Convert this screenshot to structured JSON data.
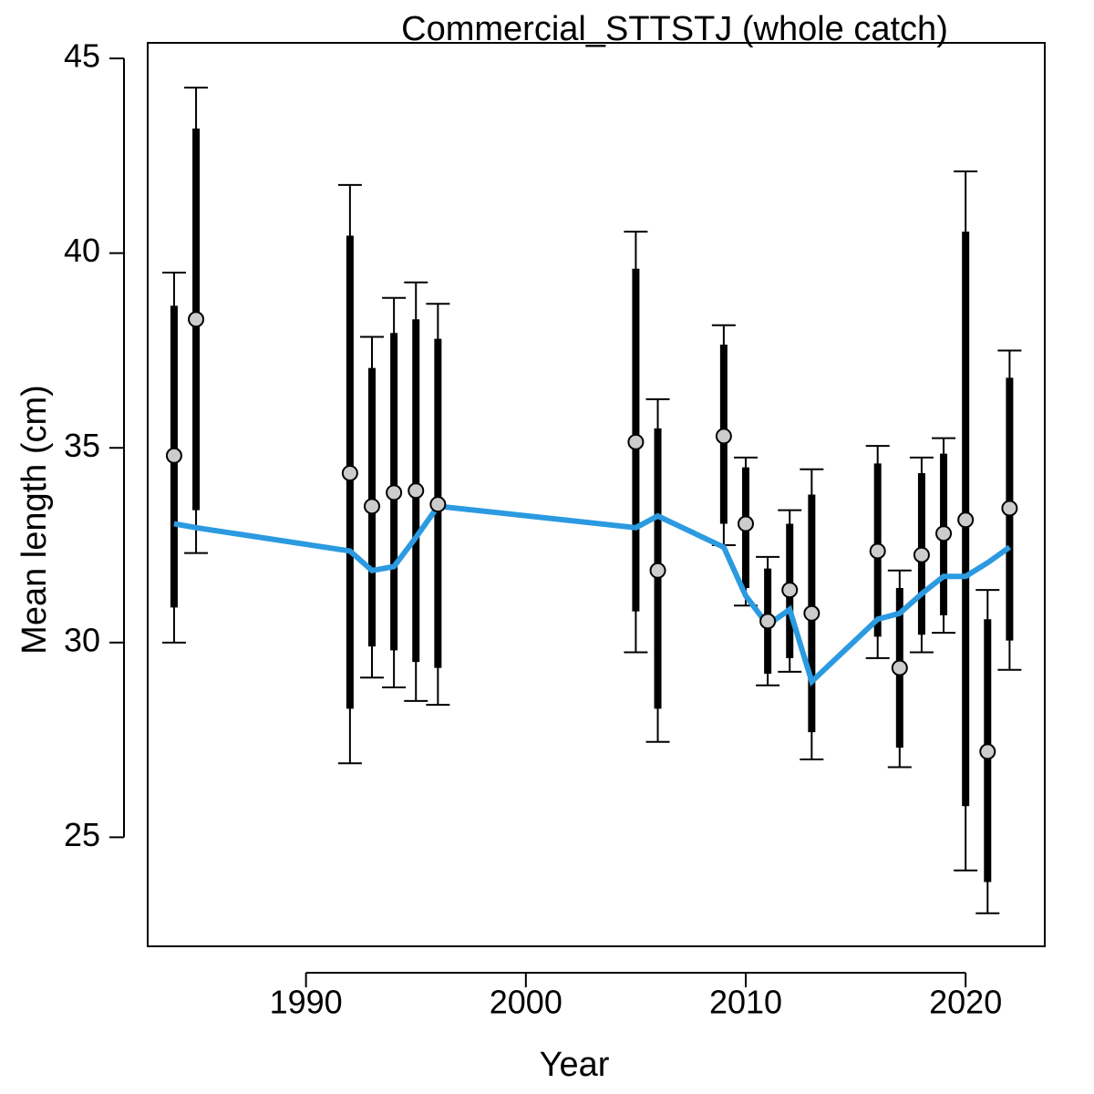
{
  "chart_data": {
    "type": "line",
    "title": "Commercial_STTSTJ (whole catch)",
    "xlabel": "Year",
    "ylabel": "Mean length (cm)",
    "xlim": [
      1982.8,
      2023.6
    ],
    "ylim": [
      22.2,
      45.4
    ],
    "xticks": [
      1990,
      2000,
      2010,
      2020
    ],
    "yticks": [
      25,
      30,
      35,
      40,
      45
    ],
    "grid": false,
    "colors": {
      "fit_line": "#2b9ae0",
      "bars": "#000000",
      "points_fill": "#cccccc",
      "points_stroke": "#000000"
    },
    "series": [
      {
        "type": "errorbar",
        "x": [
          1984,
          1985,
          1992,
          1993,
          1994,
          1995,
          1996,
          2005,
          2006,
          2009,
          2010,
          2011,
          2012,
          2013,
          2016,
          2017,
          2018,
          2019,
          2020,
          2021,
          2022
        ],
        "y": [
          34.8,
          38.3,
          34.35,
          33.5,
          33.85,
          33.9,
          33.55,
          35.15,
          31.85,
          35.3,
          33.05,
          30.55,
          31.35,
          30.75,
          32.35,
          29.35,
          32.25,
          32.8,
          33.15,
          27.2,
          33.45
        ],
        "inner_low": [
          30.9,
          33.4,
          28.3,
          29.9,
          29.8,
          29.5,
          29.35,
          30.8,
          28.3,
          33.05,
          31.4,
          29.2,
          29.6,
          27.7,
          30.15,
          27.3,
          30.2,
          30.7,
          25.8,
          23.85,
          30.05
        ],
        "inner_high": [
          38.65,
          43.2,
          40.45,
          37.05,
          37.95,
          38.3,
          37.8,
          39.6,
          35.5,
          37.65,
          34.5,
          31.9,
          33.05,
          33.8,
          34.6,
          31.4,
          34.35,
          34.85,
          40.55,
          30.6,
          36.8
        ],
        "outer_low": [
          30.0,
          32.3,
          26.9,
          29.1,
          28.85,
          28.5,
          28.4,
          29.75,
          27.45,
          32.5,
          30.95,
          28.9,
          29.25,
          27.0,
          29.6,
          26.8,
          29.75,
          30.25,
          24.15,
          23.05,
          29.3
        ],
        "outer_high": [
          39.5,
          44.25,
          41.75,
          37.85,
          38.85,
          39.25,
          38.7,
          40.55,
          36.25,
          38.15,
          34.75,
          32.2,
          33.4,
          34.45,
          35.05,
          31.85,
          34.75,
          35.25,
          42.1,
          31.35,
          37.5
        ]
      },
      {
        "type": "line",
        "x": [
          1984,
          1985,
          1992,
          1993,
          1994,
          1995,
          1996,
          2005,
          2006,
          2009,
          2010,
          2011,
          2012,
          2013,
          2016,
          2017,
          2018,
          2019,
          2020,
          2021,
          2022
        ],
        "y": [
          33.05,
          32.95,
          32.35,
          31.85,
          31.95,
          32.7,
          33.5,
          32.95,
          33.25,
          32.45,
          31.2,
          30.45,
          30.85,
          29.0,
          30.6,
          30.75,
          31.25,
          31.7,
          31.7,
          32.05,
          32.45
        ]
      }
    ]
  }
}
